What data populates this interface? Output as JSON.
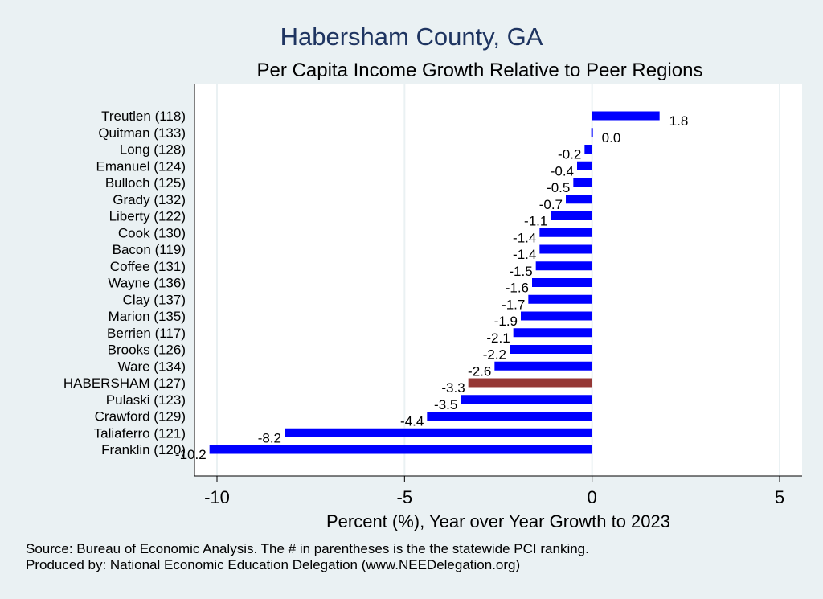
{
  "title": "Habersham County, GA",
  "subtitle": "Per Capita Income Growth Relative to Peer Regions",
  "footnotes": {
    "source": "Source: Bureau of Economic Analysis. The # in parentheses is the the statewide PCI ranking.",
    "producer": "Produced by: National Economic Education Delegation (www.NEEDelegation.org)"
  },
  "colors": {
    "bar": "#0000ff",
    "highlight": "#953735",
    "grid": "#eaf1f3",
    "plot_bg": "#ffffff"
  },
  "chart_data": {
    "type": "bar",
    "orientation": "horizontal",
    "xlabel": "Percent (%), Year over Year Growth to 2023",
    "xlim": [
      -10.6,
      5.6
    ],
    "xticks": [
      -10,
      -5,
      0,
      5
    ],
    "grid": true,
    "highlight": "HABERSHAM (127)",
    "categories": [
      "Treutlen (118)",
      "Quitman (133)",
      "Long (128)",
      "Emanuel (124)",
      "Bulloch (125)",
      "Grady (132)",
      "Liberty (122)",
      "Cook (130)",
      "Bacon (119)",
      "Coffee (131)",
      "Wayne (136)",
      "Clay (137)",
      "Marion (135)",
      "Berrien (117)",
      "Brooks (126)",
      "Ware (134)",
      "HABERSHAM (127)",
      "Pulaski (123)",
      "Crawford (129)",
      "Taliaferro (121)",
      "Franklin (120)"
    ],
    "values": [
      1.8,
      0.0,
      -0.2,
      -0.4,
      -0.5,
      -0.7,
      -1.1,
      -1.4,
      -1.4,
      -1.5,
      -1.6,
      -1.7,
      -1.9,
      -2.1,
      -2.2,
      -2.6,
      -3.3,
      -3.5,
      -4.4,
      -8.2,
      -10.2
    ],
    "labels": [
      "1.8",
      "0.0",
      "-0.2",
      "-0.4",
      "-0.5",
      "-0.7",
      "-1.1",
      "-1.4",
      "-1.4",
      "-1.5",
      "-1.6",
      "-1.7",
      "-1.9",
      "-2.1",
      "-2.2",
      "-2.6",
      "-3.3",
      "-3.5",
      "-4.4",
      "-8.2",
      "-10.2"
    ]
  }
}
